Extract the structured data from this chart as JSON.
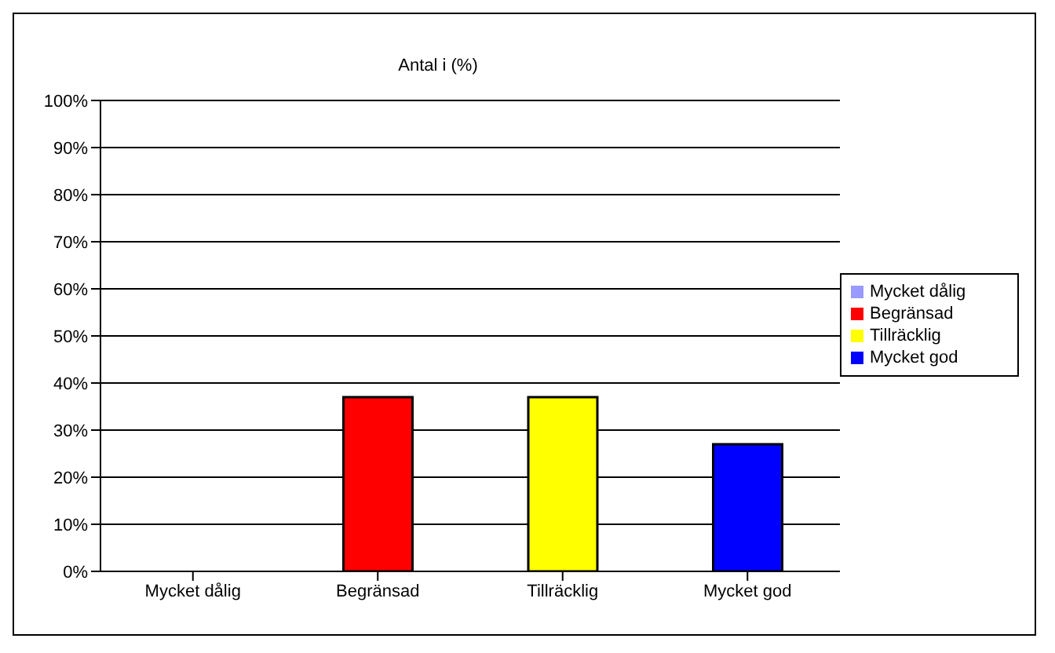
{
  "chart_data": {
    "type": "bar",
    "title": "Antal i (%)",
    "categories": [
      "Mycket dålig",
      "Begränsad",
      "Tillräcklig",
      "Mycket god"
    ],
    "series": [
      {
        "name": "Mycket dålig",
        "color": "#9999ff",
        "values": [
          0,
          null,
          null,
          null
        ]
      },
      {
        "name": "Begränsad",
        "color": "#ff0000",
        "values": [
          null,
          37,
          null,
          null
        ]
      },
      {
        "name": "Tillräcklig",
        "color": "#ffff00",
        "values": [
          null,
          null,
          37,
          null
        ]
      },
      {
        "name": "Mycket god",
        "color": "#0000ff",
        "values": [
          null,
          null,
          null,
          27
        ]
      }
    ],
    "stacked": true,
    "ylim": [
      0,
      100
    ],
    "yticks": [
      {
        "value": 0,
        "label": "0%"
      },
      {
        "value": 10,
        "label": "10%"
      },
      {
        "value": 20,
        "label": "20%"
      },
      {
        "value": 30,
        "label": "30%"
      },
      {
        "value": 40,
        "label": "40%"
      },
      {
        "value": 50,
        "label": "50%"
      },
      {
        "value": 60,
        "label": "60%"
      },
      {
        "value": 70,
        "label": "70%"
      },
      {
        "value": 80,
        "label": "80%"
      },
      {
        "value": 90,
        "label": "90%"
      },
      {
        "value": 100,
        "label": "100%"
      }
    ],
    "grid": "y",
    "legend": "right"
  }
}
